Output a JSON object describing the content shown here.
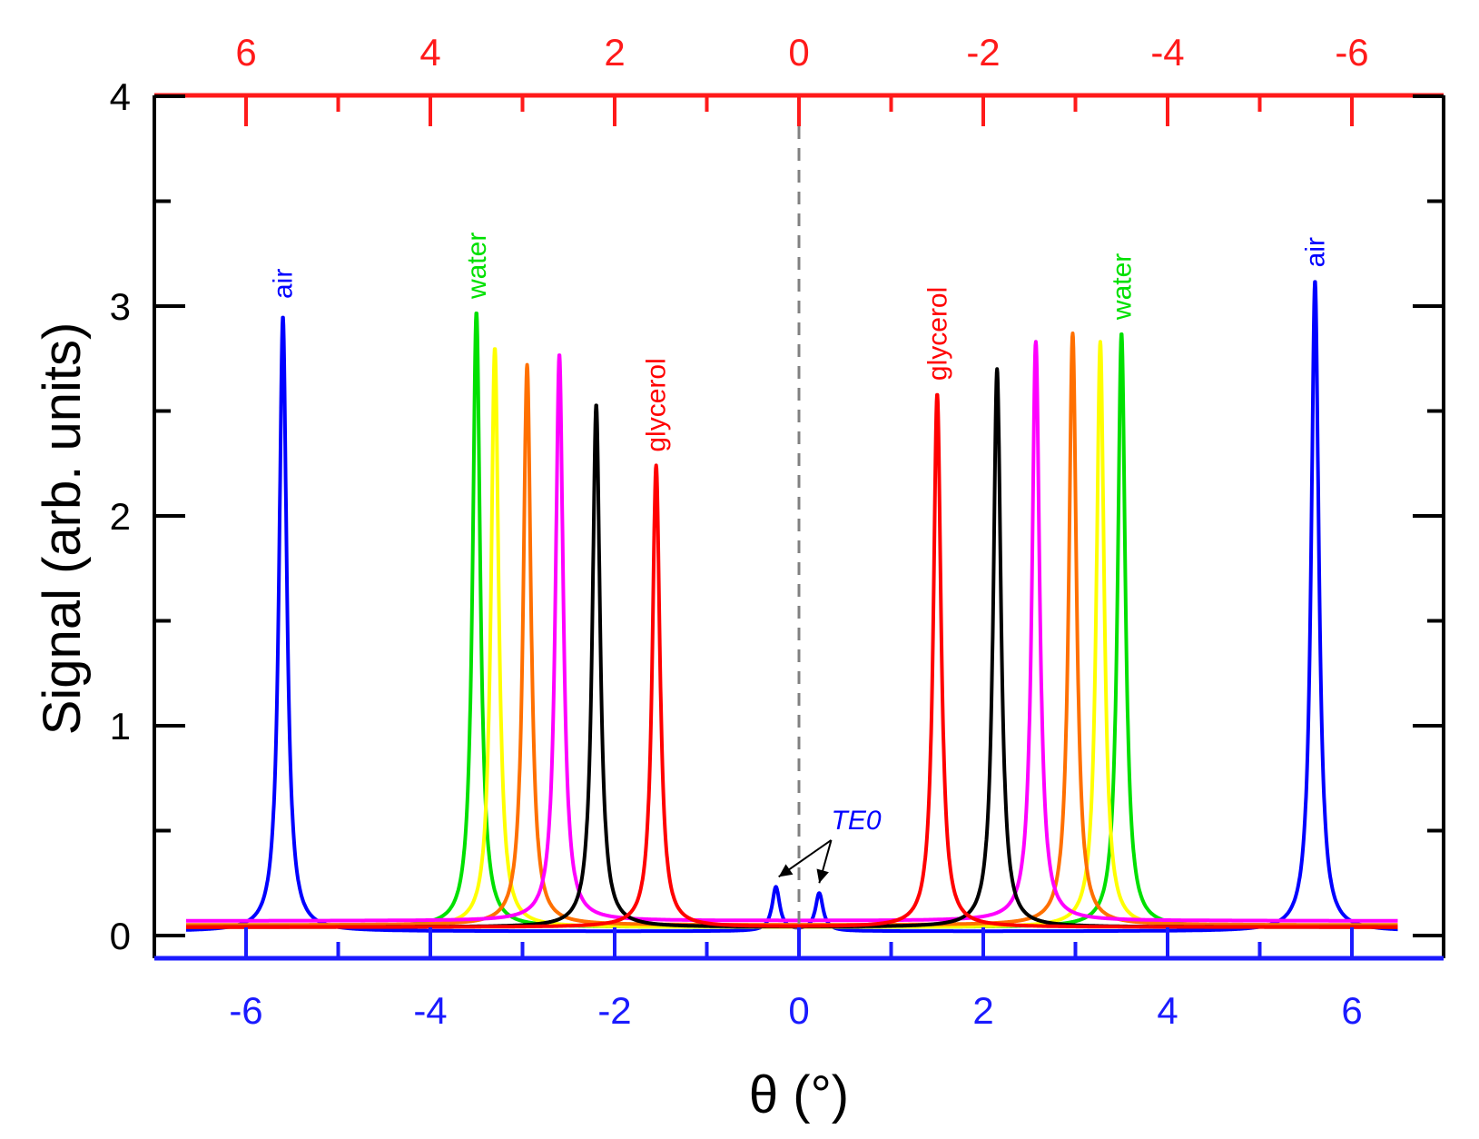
{
  "chart_data": {
    "type": "line",
    "title": "",
    "xlabel": "θ   (°)",
    "ylabel": "Signal   (arb. units)",
    "xlim": [
      -7,
      7
    ],
    "ylim": [
      -0.1,
      4
    ],
    "x_ticks": [
      "-6",
      "-4",
      "-2",
      "0",
      "2",
      "4",
      "6"
    ],
    "x_tick_values": [
      -6,
      -4,
      -2,
      0,
      2,
      4,
      6
    ],
    "top_ticks": [
      "6",
      "4",
      "2",
      "0",
      "-2",
      "-4",
      "-6"
    ],
    "top_tick_values": [
      6,
      4,
      2,
      0,
      -2,
      -4,
      -6
    ],
    "y_ticks": [
      "0",
      "1",
      "2",
      "3",
      "4"
    ],
    "y_tick_values": [
      0,
      1,
      2,
      3,
      4
    ],
    "colors": {
      "axis_bottom": "#1a1aff",
      "axis_top": "#ff1a1a",
      "axis_frame": "#000000",
      "zero_line": "#808080"
    },
    "series": [
      {
        "name": "air",
        "color": "#0000ff",
        "baseline": 0.02,
        "peaks": [
          {
            "x": -5.6,
            "y": 2.95,
            "w": 0.05
          },
          {
            "x": 5.6,
            "y": 3.12,
            "w": 0.05
          },
          {
            "x": -0.25,
            "y": 0.23,
            "w": 0.05
          },
          {
            "x": 0.22,
            "y": 0.2,
            "w": 0.05
          }
        ]
      },
      {
        "name": "water",
        "color": "#00e000",
        "baseline": 0.04,
        "peaks": [
          {
            "x": -3.5,
            "y": 2.97,
            "w": 0.05
          },
          {
            "x": 3.5,
            "y": 2.87,
            "w": 0.05
          }
        ]
      },
      {
        "name": "yellow",
        "color": "#ffff00",
        "baseline": 0.04,
        "peaks": [
          {
            "x": -3.3,
            "y": 2.8,
            "w": 0.05
          },
          {
            "x": 3.27,
            "y": 2.83,
            "w": 0.05
          }
        ]
      },
      {
        "name": "orange",
        "color": "#ff7000",
        "baseline": 0.05,
        "peaks": [
          {
            "x": -2.95,
            "y": 2.72,
            "w": 0.05
          },
          {
            "x": 2.97,
            "y": 2.87,
            "w": 0.05
          }
        ]
      },
      {
        "name": "magenta",
        "color": "#ff00ff",
        "baseline": 0.07,
        "peaks": [
          {
            "x": -2.6,
            "y": 2.77,
            "w": 0.05
          },
          {
            "x": 2.57,
            "y": 2.83,
            "w": 0.05
          }
        ]
      },
      {
        "name": "black",
        "color": "#000000",
        "baseline": 0.04,
        "peaks": [
          {
            "x": -2.2,
            "y": 2.53,
            "w": 0.05
          },
          {
            "x": 2.15,
            "y": 2.7,
            "w": 0.05
          }
        ]
      },
      {
        "name": "glycerol",
        "color": "#ff0000",
        "baseline": 0.04,
        "peaks": [
          {
            "x": -1.55,
            "y": 2.24,
            "w": 0.05
          },
          {
            "x": 1.5,
            "y": 2.58,
            "w": 0.05
          }
        ]
      }
    ],
    "annotations": [
      {
        "text": "air",
        "x": -5.6,
        "y": 3.0,
        "color": "#0000ff",
        "rotate": true
      },
      {
        "text": "water",
        "x": -3.5,
        "y": 3.0,
        "color": "#00e000",
        "rotate": true
      },
      {
        "text": "glycerol",
        "x": -1.55,
        "y": 2.27,
        "color": "#ff0000",
        "rotate": true
      },
      {
        "text": "glycerol",
        "x": 1.5,
        "y": 2.61,
        "color": "#ff0000",
        "rotate": true
      },
      {
        "text": "water",
        "x": 3.5,
        "y": 2.9,
        "color": "#00e000",
        "rotate": true
      },
      {
        "text": "air",
        "x": 5.6,
        "y": 3.15,
        "color": "#0000ff",
        "rotate": true
      },
      {
        "text": "TE0",
        "x": 0.35,
        "y": 0.55,
        "color": "#0000ff",
        "rotate": false
      }
    ]
  }
}
